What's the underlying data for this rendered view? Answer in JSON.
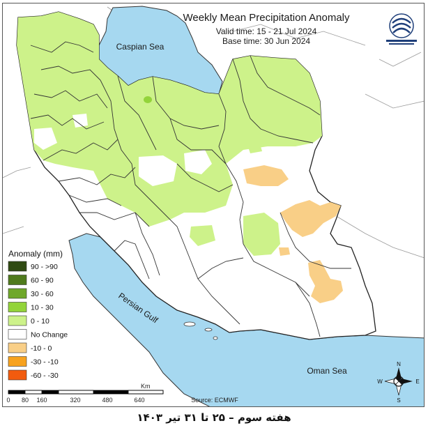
{
  "header": {
    "title": "Weekly Mean Precipitation Anomaly",
    "valid_time": "Valid time: 15 - 21 Jul 2024",
    "base_time": "Base time: 30 Jun 2024"
  },
  "water_labels": {
    "caspian": "Caspian Sea",
    "persian_gulf": "Persian Gulf",
    "oman_sea": "Oman Sea"
  },
  "legend": {
    "title": "Anomaly (mm)",
    "items": [
      {
        "label": "90 - >90",
        "color": "#2f4a12"
      },
      {
        "label": "60 - 90",
        "color": "#4f7a1c"
      },
      {
        "label": "30 - 60",
        "color": "#6fa82a"
      },
      {
        "label": "10 - 30",
        "color": "#93d43a"
      },
      {
        "label": "0 - 10",
        "color": "#cdf28a"
      },
      {
        "label": "No Change",
        "color": "#ffffff"
      },
      {
        "label": "-10 - 0",
        "color": "#f9cf87"
      },
      {
        "label": "-30 - -10",
        "color": "#f7a21e"
      },
      {
        "label": "-60 - -30",
        "color": "#f25b0e"
      }
    ]
  },
  "scale_bar": {
    "unit": "Km",
    "ticks": [
      "0",
      "80",
      "160",
      "320",
      "480",
      "640"
    ]
  },
  "source": "Source: ECMWF",
  "compass": {
    "n": "N",
    "s": "S",
    "e": "E",
    "w": "W"
  },
  "footer_text": "هفته سوم – ۲۵ تا ۳۱ تیر ۱۴۰۳",
  "colors": {
    "water": "#a6d8f0",
    "land_positive_light": "#cdf28a",
    "land_positive": "#93d43a",
    "land_negative_light": "#f9cf87",
    "no_change": "#ffffff",
    "border": "#333333"
  },
  "icons": {
    "logo": "meteorology-organization-logo",
    "compass": "north-arrow-compass-icon"
  }
}
